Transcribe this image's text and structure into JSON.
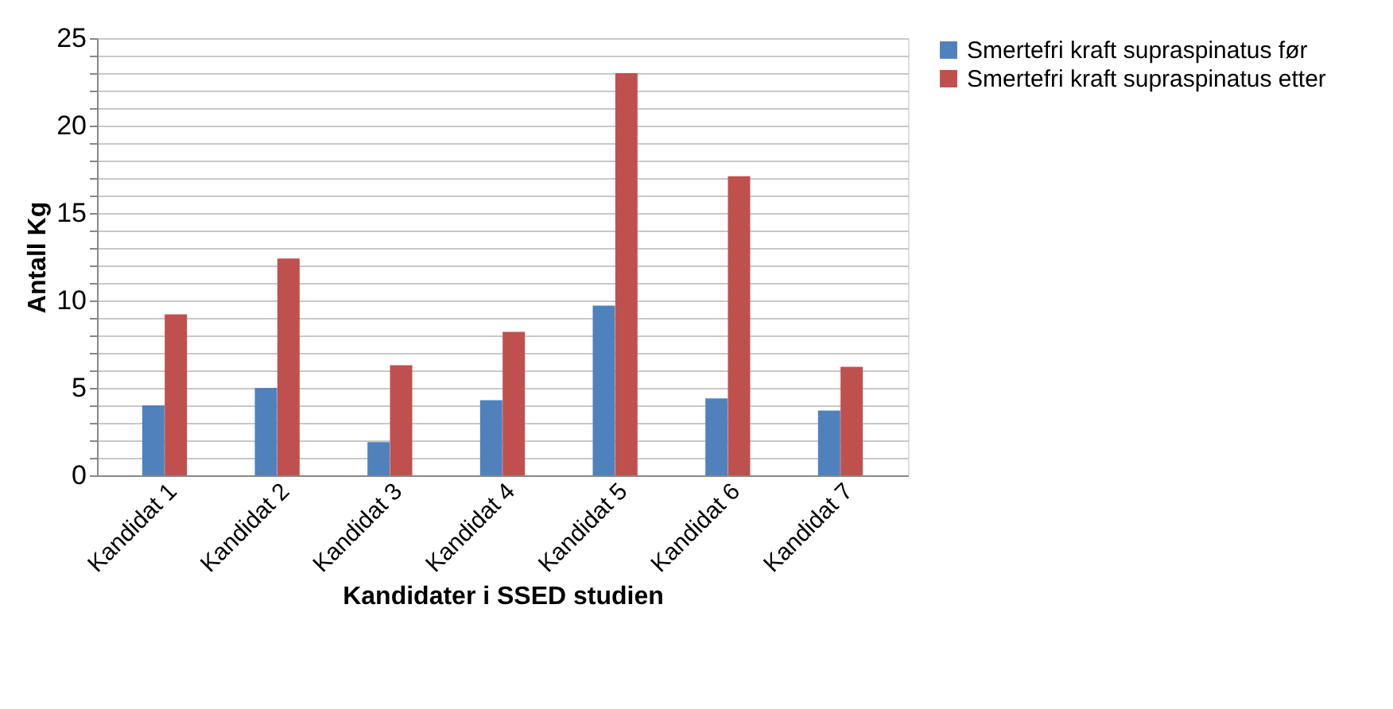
{
  "chart_data": {
    "type": "bar",
    "xlabel": "Kandidater i SSED studien",
    "ylabel": "Antall Kg",
    "categories": [
      "Kandidat 1",
      "Kandidat 2",
      "Kandidat 3",
      "Kandidat 4",
      "Kandidat 5",
      "Kandidat 6",
      "Kandidat 7"
    ],
    "series": [
      {
        "name": "Smertefri kraft supraspinatus før",
        "color": "#4f81bd",
        "values": [
          4.0,
          5.0,
          1.9,
          4.3,
          9.7,
          4.4,
          3.7
        ]
      },
      {
        "name": "Smertefri kraft supraspinatus etter",
        "color": "#c0504d",
        "values": [
          9.2,
          12.4,
          6.3,
          8.2,
          23.0,
          17.1,
          6.2
        ]
      }
    ],
    "ylim": [
      0,
      25
    ],
    "yticks": [
      0,
      {
        "value": 1,
        "label": null
      },
      {
        "value": 2,
        "label": null
      },
      {
        "value": 3,
        "label": null
      },
      {
        "value": 4,
        "label": null
      },
      5,
      {
        "value": 6,
        "label": null
      },
      {
        "value": 7,
        "label": null
      },
      {
        "value": 8,
        "label": null
      },
      {
        "value": 9,
        "label": null
      },
      10,
      {
        "value": 11,
        "label": null
      },
      {
        "value": 12,
        "label": null
      },
      {
        "value": 13,
        "label": null
      },
      {
        "value": 14,
        "label": null
      },
      15,
      {
        "value": 16,
        "label": null
      },
      {
        "value": 17,
        "label": null
      },
      {
        "value": 18,
        "label": null
      },
      {
        "value": 19,
        "label": null
      },
      20,
      {
        "value": 21,
        "label": null
      },
      {
        "value": 22,
        "label": null
      },
      {
        "value": 23,
        "label": null
      },
      {
        "value": 24,
        "label": null
      },
      25
    ],
    "grid": "y",
    "legend": "right"
  }
}
